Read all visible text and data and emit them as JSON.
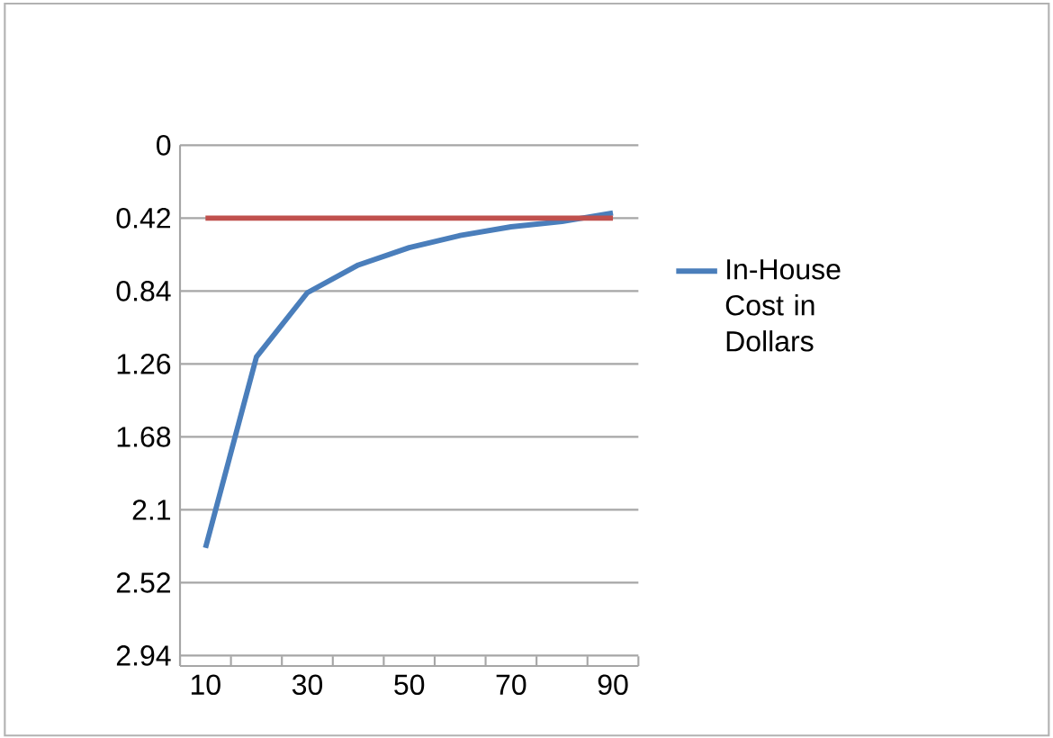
{
  "chart_data": {
    "type": "line",
    "categories": [
      "10",
      null,
      "30",
      null,
      "50",
      null,
      "70",
      null,
      "90"
    ],
    "series": [
      {
        "name": "In-House Cost in Dollars",
        "color": "#4a7ebb",
        "values": [
          2.32,
          1.22,
          0.85,
          0.69,
          0.59,
          0.52,
          0.47,
          0.44,
          0.39
        ]
      }
    ],
    "ref_lines": [
      {
        "axis": "y",
        "value": 0.42,
        "color": "#c0504d"
      }
    ],
    "ylim": [
      3.0,
      0
    ],
    "yticks": [
      0,
      0.42,
      0.84,
      1.26,
      1.68,
      2.1,
      2.52,
      2.94
    ],
    "grid": "y",
    "legend": "right",
    "marker": "none",
    "line_style": "solid"
  }
}
